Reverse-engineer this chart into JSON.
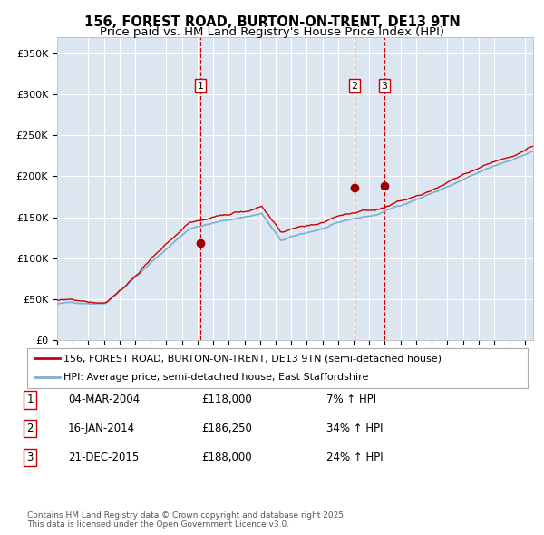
{
  "title": "156, FOREST ROAD, BURTON-ON-TRENT, DE13 9TN",
  "subtitle": "Price paid vs. HM Land Registry's House Price Index (HPI)",
  "ylabel_ticks": [
    "£0",
    "£50K",
    "£100K",
    "£150K",
    "£200K",
    "£250K",
    "£300K",
    "£350K"
  ],
  "ytick_values": [
    0,
    50000,
    100000,
    150000,
    200000,
    250000,
    300000,
    350000
  ],
  "ylim": [
    0,
    370000
  ],
  "xlim_start": 1995.0,
  "xlim_end": 2025.5,
  "background_color": "#dce6f1",
  "red_line_color": "#cc0000",
  "blue_line_color": "#7bafd4",
  "grid_color": "#ffffff",
  "dashed_vline_color": "#cc0000",
  "purchase_dates": [
    2004.17,
    2014.04,
    2015.97
  ],
  "purchase_prices": [
    118000,
    186250,
    188000
  ],
  "purchase_labels": [
    "1",
    "2",
    "3"
  ],
  "legend_entries": [
    "156, FOREST ROAD, BURTON-ON-TRENT, DE13 9TN (semi-detached house)",
    "HPI: Average price, semi-detached house, East Staffordshire"
  ],
  "table_rows": [
    {
      "num": "1",
      "date": "04-MAR-2004",
      "price": "£118,000",
      "hpi": "7% ↑ HPI"
    },
    {
      "num": "2",
      "date": "16-JAN-2014",
      "price": "£186,250",
      "hpi": "34% ↑ HPI"
    },
    {
      "num": "3",
      "date": "21-DEC-2015",
      "price": "£188,000",
      "hpi": "24% ↑ HPI"
    }
  ],
  "footnote": "Contains HM Land Registry data © Crown copyright and database right 2025.\nThis data is licensed under the Open Government Licence v3.0.",
  "title_fontsize": 10.5,
  "subtitle_fontsize": 9.5,
  "tick_fontsize": 8,
  "legend_fontsize": 8,
  "table_fontsize": 8.5,
  "footnote_fontsize": 6.5
}
